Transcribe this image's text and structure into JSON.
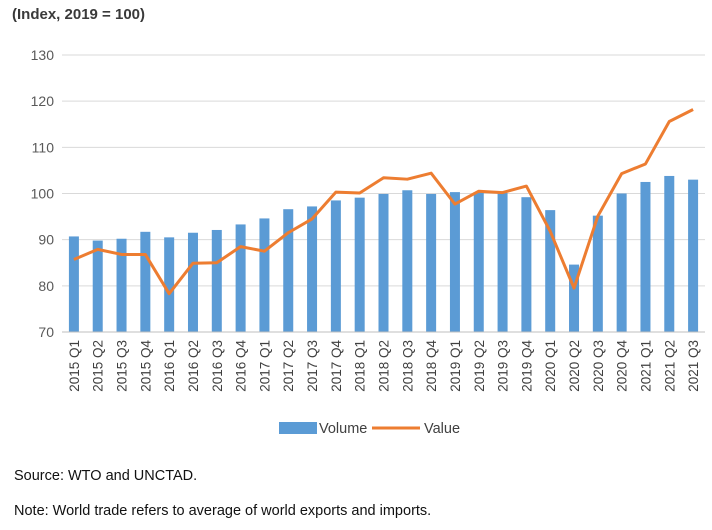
{
  "header": {
    "subtitle": "(Index, 2019 = 100)"
  },
  "footer": {
    "source": "Source: WTO and UNCTAD.",
    "note": "Note: World trade refers to average of world exports and imports."
  },
  "chart_data": {
    "type": "bar",
    "subtitle": "(Index, 2019 = 100)",
    "ylim": [
      70,
      130
    ],
    "yticks": [
      70,
      80,
      90,
      100,
      110,
      120,
      130
    ],
    "grid": true,
    "legend_position": "bottom",
    "categories": [
      "2015 Q1",
      "2015 Q2",
      "2015 Q3",
      "2015 Q4",
      "2016 Q1",
      "2016 Q2",
      "2016 Q3",
      "2016 Q4",
      "2017 Q1",
      "2017 Q2",
      "2017 Q3",
      "2017 Q4",
      "2018 Q1",
      "2018 Q2",
      "2018 Q3",
      "2018 Q4",
      "2019 Q1",
      "2019 Q2",
      "2019 Q3",
      "2019 Q4",
      "2020 Q1",
      "2020 Q2",
      "2020 Q3",
      "2020 Q4",
      "2021 Q1",
      "2021 Q2",
      "2021 Q3"
    ],
    "series": [
      {
        "name": "Volume",
        "kind": "bar",
        "color": "#5b9bd5",
        "values": [
          90.7,
          89.8,
          90.2,
          91.7,
          90.5,
          91.5,
          92.1,
          93.3,
          94.6,
          96.6,
          97.2,
          98.5,
          99.1,
          99.9,
          100.7,
          99.9,
          100.3,
          100.3,
          100.1,
          99.2,
          96.4,
          84.6,
          95.2,
          100.0,
          102.5,
          103.8,
          103.0
        ]
      },
      {
        "name": "Value",
        "kind": "line",
        "color": "#ed7d31",
        "values": [
          85.7,
          87.9,
          86.8,
          86.8,
          78.3,
          84.9,
          85.0,
          88.5,
          87.5,
          91.5,
          94.5,
          100.3,
          100.1,
          103.4,
          103.1,
          104.4,
          97.7,
          100.5,
          100.2,
          101.6,
          91.8,
          79.5,
          95.1,
          104.3,
          106.4,
          115.6,
          118.2
        ]
      }
    ]
  }
}
